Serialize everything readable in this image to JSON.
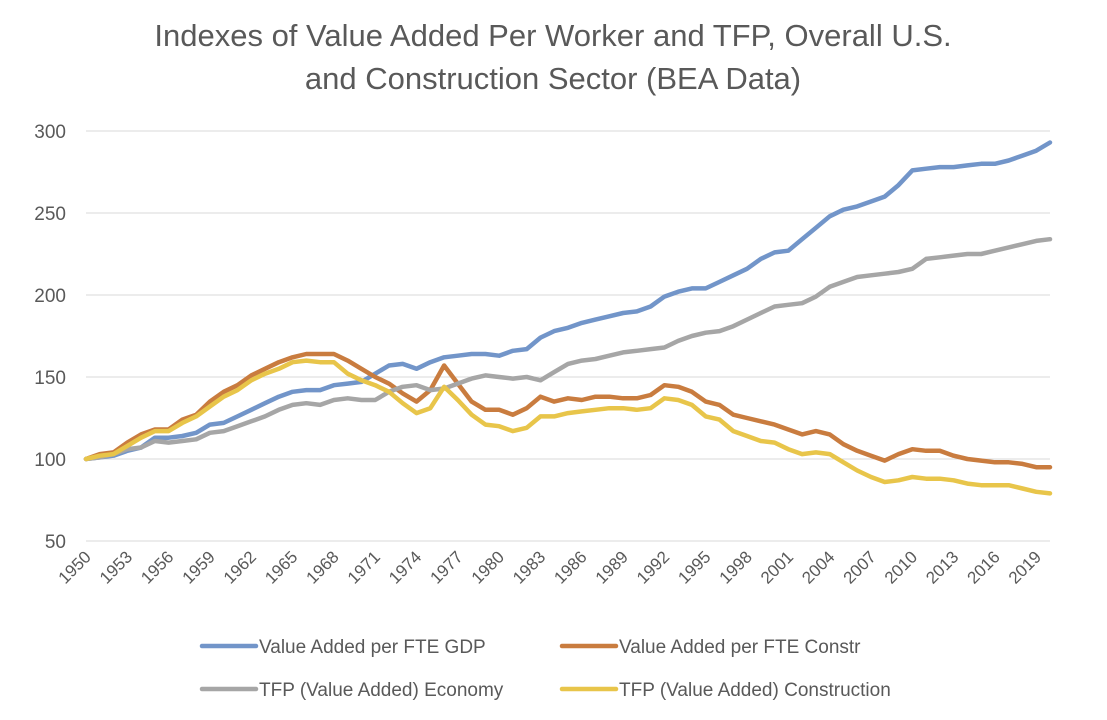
{
  "chart_data": {
    "type": "line",
    "title": [
      "Indexes of Value Added Per Worker and TFP, Overall U.S.",
      "and Construction Sector (BEA Data)"
    ],
    "xlabel": "",
    "ylabel": "",
    "ylim": [
      50,
      300
    ],
    "yticks": [
      50,
      100,
      150,
      200,
      250,
      300
    ],
    "grid": true,
    "legend_position": "bottom",
    "x_tick_labels": [
      "1950",
      "1953",
      "1956",
      "1959",
      "1962",
      "1965",
      "1968",
      "1971",
      "1974",
      "1977",
      "1980",
      "1983",
      "1986",
      "1989",
      "1992",
      "1995",
      "1998",
      "2001",
      "2004",
      "2007",
      "2010",
      "2013",
      "2016",
      "2019"
    ],
    "x": [
      1950,
      1951,
      1952,
      1953,
      1954,
      1955,
      1956,
      1957,
      1958,
      1959,
      1960,
      1961,
      1962,
      1963,
      1964,
      1965,
      1966,
      1967,
      1968,
      1969,
      1970,
      1971,
      1972,
      1973,
      1974,
      1975,
      1976,
      1977,
      1978,
      1979,
      1980,
      1981,
      1982,
      1983,
      1984,
      1985,
      1986,
      1987,
      1988,
      1989,
      1990,
      1991,
      1992,
      1993,
      1994,
      1995,
      1996,
      1997,
      1998,
      1999,
      2000,
      2001,
      2002,
      2003,
      2004,
      2005,
      2006,
      2007,
      2008,
      2009,
      2010,
      2011,
      2012,
      2013,
      2014,
      2015,
      2016,
      2017,
      2018,
      2019,
      2020
    ],
    "series": [
      {
        "name": "Value Added per FTE GDP",
        "color": "#7295c9",
        "values": [
          100,
          101,
          102,
          105,
          107,
          113,
          113,
          114,
          116,
          121,
          122,
          126,
          130,
          134,
          138,
          141,
          142,
          142,
          145,
          146,
          147,
          152,
          157,
          158,
          155,
          159,
          162,
          163,
          164,
          164,
          163,
          166,
          167,
          174,
          178,
          180,
          183,
          185,
          187,
          189,
          190,
          193,
          199,
          202,
          204,
          204,
          208,
          212,
          216,
          222,
          226,
          227,
          234,
          241,
          248,
          252,
          254,
          257,
          260,
          267,
          276,
          277,
          278,
          278,
          279,
          280,
          280,
          282,
          285,
          288,
          293
        ]
      },
      {
        "name": "Value Added per FTE Constr",
        "color": "#c97c3f",
        "values": [
          100,
          103,
          104,
          110,
          115,
          118,
          118,
          124,
          127,
          135,
          141,
          145,
          151,
          155,
          159,
          162,
          164,
          164,
          164,
          160,
          155,
          150,
          146,
          140,
          135,
          142,
          157,
          146,
          135,
          130,
          130,
          127,
          131,
          138,
          135,
          137,
          136,
          138,
          138,
          137,
          137,
          139,
          145,
          144,
          141,
          135,
          133,
          127,
          125,
          123,
          121,
          118,
          115,
          117,
          115,
          109,
          105,
          102,
          99,
          103,
          106,
          105,
          105,
          102,
          100,
          99,
          98,
          98,
          97,
          95,
          95
        ]
      },
      {
        "name": "TFP (Value Added) Economy",
        "color": "#a6a6a6",
        "values": [
          100,
          101,
          103,
          106,
          107,
          111,
          110,
          111,
          112,
          116,
          117,
          120,
          123,
          126,
          130,
          133,
          134,
          133,
          136,
          137,
          136,
          136,
          141,
          144,
          145,
          142,
          143,
          146,
          149,
          151,
          150,
          149,
          150,
          148,
          153,
          158,
          160,
          161,
          163,
          165,
          166,
          167,
          168,
          172,
          175,
          177,
          178,
          181,
          185,
          189,
          193,
          194,
          195,
          199,
          205,
          208,
          211,
          212,
          213,
          214,
          216,
          222,
          223,
          224,
          225,
          225,
          227,
          229,
          231,
          233,
          234
        ]
      },
      {
        "name": "TFP (Value Added) Construction",
        "color": "#e8c54a",
        "values": [
          100,
          102,
          103,
          108,
          113,
          117,
          117,
          122,
          126,
          132,
          138,
          142,
          148,
          152,
          155,
          159,
          160,
          159,
          159,
          152,
          148,
          145,
          141,
          134,
          128,
          131,
          144,
          136,
          127,
          121,
          120,
          117,
          119,
          126,
          126,
          128,
          129,
          130,
          131,
          131,
          130,
          131,
          137,
          136,
          133,
          126,
          124,
          117,
          114,
          111,
          110,
          106,
          103,
          104,
          103,
          98,
          93,
          89,
          86,
          87,
          89,
          88,
          88,
          87,
          85,
          84,
          84,
          84,
          82,
          80,
          79
        ]
      }
    ]
  }
}
